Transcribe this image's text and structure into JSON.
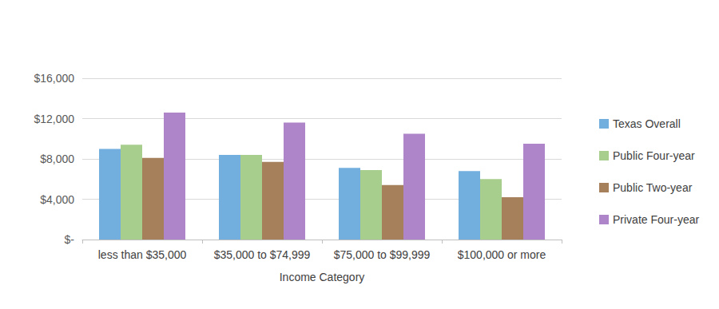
{
  "chart_data": {
    "type": "bar",
    "x_label": "Income Category",
    "categories": [
      "less than $35,000",
      "$35,000 to $74,999",
      "$75,000 to $99,999",
      "$100,000 or more"
    ],
    "series": [
      {
        "name": "Texas Overall",
        "color": "#72AEDE",
        "values": [
          9000,
          8400,
          7100,
          6800
        ]
      },
      {
        "name": "Public Four-year",
        "color": "#A8CE8E",
        "values": [
          9400,
          8400,
          6900,
          6000
        ]
      },
      {
        "name": "Public Two-year",
        "color": "#A5805B",
        "values": [
          8100,
          7700,
          5400,
          4200
        ]
      },
      {
        "name": "Private Four-year",
        "color": "#AD85C8",
        "values": [
          12600,
          11600,
          10500,
          9500
        ]
      }
    ],
    "ylim": [
      0,
      16000
    ],
    "yticks": [
      {
        "value": 0,
        "label": "$-"
      },
      {
        "value": 4000,
        "label": "$4,000"
      },
      {
        "value": 8000,
        "label": "$8,000"
      },
      {
        "value": 12000,
        "label": "$12,000"
      },
      {
        "value": 16000,
        "label": "$16,000"
      }
    ],
    "grid": true,
    "legend": "right"
  }
}
